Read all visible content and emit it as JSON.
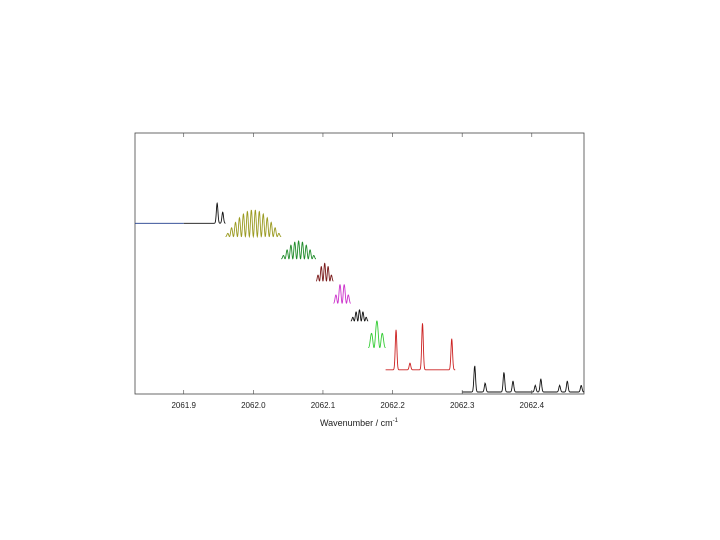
{
  "chart_data": {
    "type": "line",
    "title": "",
    "xlabel": "Wavenumber / cm",
    "xlabel_superscript": "-1",
    "ylabel": "",
    "xlim": [
      2061.83,
      2062.475
    ],
    "ylim": [
      0,
      100
    ],
    "x_ticks": [
      2061.9,
      2062.0,
      2062.1,
      2062.2,
      2062.3,
      2062.4
    ],
    "x_tick_labels": [
      "2061.9",
      "2062.0",
      "2062.1",
      "2062.2",
      "2062.3",
      "2062.4"
    ],
    "y_ticks_shown": false,
    "grid": false,
    "legend": "none",
    "series": [
      {
        "color": "#1f3c8c",
        "style": "flat",
        "x": [
          2061.83,
          2061.9
        ],
        "baseline": 76,
        "amplitude": 0,
        "n_peaks": 0
      },
      {
        "color": "#111111",
        "style": "peaks",
        "x": [
          2061.9,
          2061.96
        ],
        "baseline": 76,
        "amplitude": 0,
        "peaks": [
          [
            2061.948,
            9
          ],
          [
            2061.956,
            5
          ]
        ]
      },
      {
        "color": "#9a9a20",
        "style": "oscillation",
        "x": [
          2061.96,
          2062.04
        ],
        "baseline": 70,
        "amplitude": 12,
        "n_peaks": 14
      },
      {
        "color": "#1f8c2a",
        "style": "oscillation",
        "x": [
          2062.04,
          2062.09
        ],
        "baseline": 60,
        "amplitude": 8,
        "n_peaks": 9
      },
      {
        "color": "#7a1a1a",
        "style": "oscillation",
        "x": [
          2062.09,
          2062.115
        ],
        "baseline": 50,
        "amplitude": 8,
        "n_peaks": 5
      },
      {
        "color": "#cc33cc",
        "style": "oscillation",
        "x": [
          2062.115,
          2062.14
        ],
        "baseline": 40,
        "amplitude": 9,
        "n_peaks": 4
      },
      {
        "color": "#111111",
        "style": "oscillation",
        "x": [
          2062.14,
          2062.165
        ],
        "baseline": 32,
        "amplitude": 5,
        "n_peaks": 5
      },
      {
        "color": "#33cc33",
        "style": "oscillation",
        "x": [
          2062.165,
          2062.19
        ],
        "baseline": 20,
        "amplitude": 12,
        "n_peaks": 3
      },
      {
        "color": "#cc2222",
        "style": "peaks",
        "x": [
          2062.19,
          2062.29
        ],
        "baseline": 10,
        "amplitude": 0,
        "peaks": [
          [
            2062.205,
            18
          ],
          [
            2062.225,
            3
          ],
          [
            2062.243,
            21
          ],
          [
            2062.285,
            14
          ]
        ]
      },
      {
        "color": "#111111",
        "style": "peaks",
        "x": [
          2062.3,
          2062.475
        ],
        "baseline": 0,
        "amplitude": 0,
        "peaks": [
          [
            2062.318,
            12
          ],
          [
            2062.333,
            4
          ],
          [
            2062.36,
            9
          ],
          [
            2062.373,
            5
          ],
          [
            2062.405,
            3
          ],
          [
            2062.413,
            6
          ],
          [
            2062.44,
            3
          ],
          [
            2062.451,
            5
          ],
          [
            2062.471,
            3
          ]
        ]
      }
    ]
  }
}
